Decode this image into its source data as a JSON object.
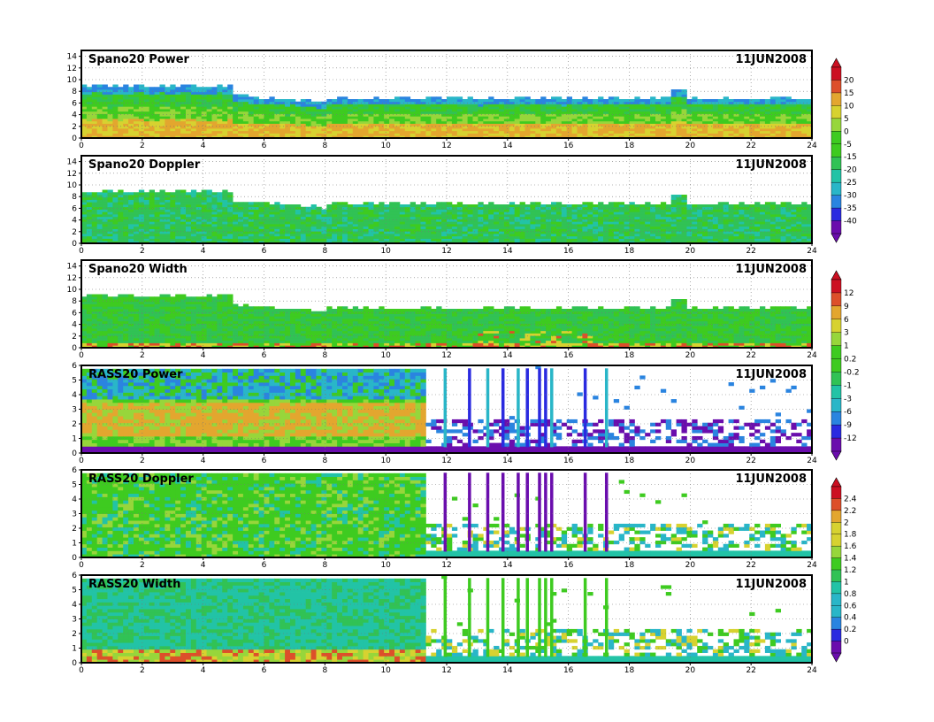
{
  "date_label": "11JUN2008",
  "palette": [
    "#6a0dad",
    "#2a2ae0",
    "#2a84e0",
    "#29b6c8",
    "#22c3a6",
    "#31c255",
    "#3ecb20",
    "#97d63b",
    "#d7d230",
    "#e3a62f",
    "#dd4f2a",
    "#cc1022"
  ],
  "chart_data": [
    {
      "type": "heatmap",
      "title": "Spano20 Power",
      "date": "11JUN2008",
      "x": {
        "range": [
          0,
          24
        ],
        "ticks": [
          0,
          2,
          4,
          6,
          8,
          10,
          12,
          14,
          16,
          18,
          20,
          22,
          24
        ]
      },
      "y": {
        "range": [
          0,
          15
        ],
        "ticks": [
          0,
          2,
          4,
          6,
          8,
          10,
          12,
          14
        ]
      },
      "colorbar": "power",
      "rass": false,
      "mode": "power"
    },
    {
      "type": "heatmap",
      "title": "Spano20 Doppler",
      "date": "11JUN2008",
      "x": {
        "range": [
          0,
          24
        ],
        "ticks": [
          0,
          2,
          4,
          6,
          8,
          10,
          12,
          14,
          16,
          18,
          20,
          22,
          24
        ]
      },
      "y": {
        "range": [
          0,
          15
        ],
        "ticks": [
          0,
          2,
          4,
          6,
          8,
          10,
          12,
          14
        ]
      },
      "colorbar": "power",
      "rass": false,
      "mode": "doppler"
    },
    {
      "type": "heatmap",
      "title": "Spano20 Width",
      "date": "11JUN2008",
      "x": {
        "range": [
          0,
          24
        ],
        "ticks": [
          0,
          2,
          4,
          6,
          8,
          10,
          12,
          14,
          16,
          18,
          20,
          22,
          24
        ]
      },
      "y": {
        "range": [
          0,
          15
        ],
        "ticks": [
          0,
          2,
          4,
          6,
          8,
          10,
          12,
          14
        ]
      },
      "colorbar": "width",
      "rass": false,
      "mode": "width"
    },
    {
      "type": "heatmap",
      "title": "RASS20 Power",
      "date": "11JUN2008",
      "x": {
        "range": [
          0,
          24
        ],
        "ticks": [
          0,
          2,
          4,
          6,
          8,
          10,
          12,
          14,
          16,
          18,
          20,
          22,
          24
        ]
      },
      "y": {
        "range": [
          0,
          6
        ],
        "ticks": [
          0,
          1,
          2,
          3,
          4,
          5,
          6
        ]
      },
      "colorbar": "width",
      "rass": true,
      "mode": "power"
    },
    {
      "type": "heatmap",
      "title": "RASS20 Doppler",
      "date": "11JUN2008",
      "x": {
        "range": [
          0,
          24
        ],
        "ticks": [
          0,
          2,
          4,
          6,
          8,
          10,
          12,
          14,
          16,
          18,
          20,
          22,
          24
        ]
      },
      "y": {
        "range": [
          0,
          6
        ],
        "ticks": [
          0,
          1,
          2,
          3,
          4,
          5,
          6
        ]
      },
      "colorbar": "rassdop",
      "rass": true,
      "mode": "doppler"
    },
    {
      "type": "heatmap",
      "title": "RASS20 Width",
      "date": "11JUN2008",
      "x": {
        "range": [
          0,
          24
        ],
        "ticks": [
          0,
          2,
          4,
          6,
          8,
          10,
          12,
          14,
          16,
          18,
          20,
          22,
          24
        ]
      },
      "y": {
        "range": [
          0,
          6
        ],
        "ticks": [
          0,
          1,
          2,
          3,
          4,
          5,
          6
        ]
      },
      "colorbar": "rassdop",
      "rass": true,
      "mode": "width"
    }
  ],
  "colorbars": {
    "power": {
      "labels": [
        "20",
        "15",
        "10",
        "5",
        "0",
        "-5",
        "-15",
        "-20",
        "-25",
        "-30",
        "-35",
        "-40"
      ]
    },
    "width": {
      "labels": [
        "12",
        "9",
        "6",
        "3",
        "1",
        "0.2",
        "-0.2",
        "-1",
        "-3",
        "-6",
        "-9",
        "-12"
      ]
    },
    "rassdop": {
      "labels": [
        "2.4",
        "2.2",
        "2",
        "1.8",
        "1.6",
        "1.4",
        "1.2",
        "1",
        "0.8",
        "0.6",
        "0.4",
        "0.2",
        "0"
      ]
    }
  }
}
